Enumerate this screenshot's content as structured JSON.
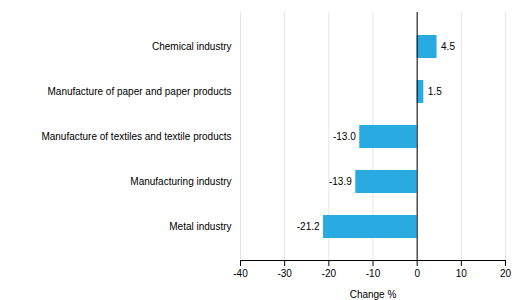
{
  "chart_data": {
    "type": "bar",
    "orientation": "horizontal",
    "categories": [
      "Metal industry",
      "Manufacturing industry",
      "Manufacture of textiles and textile products",
      "Manufacture of paper and paper products",
      "Chemical industry"
    ],
    "values": [
      -21.2,
      -13.9,
      -13.0,
      1.5,
      4.5
    ],
    "value_labels": [
      "-21.2",
      "-13.9",
      "-13.0",
      "1.5",
      "4.5"
    ],
    "color": "#29ABE2",
    "xlabel": "Change %",
    "xlim": [
      -40,
      20
    ],
    "xticks": [
      -40,
      -30,
      -20,
      -10,
      0,
      10,
      20
    ],
    "grid": true,
    "data_labels": true
  }
}
